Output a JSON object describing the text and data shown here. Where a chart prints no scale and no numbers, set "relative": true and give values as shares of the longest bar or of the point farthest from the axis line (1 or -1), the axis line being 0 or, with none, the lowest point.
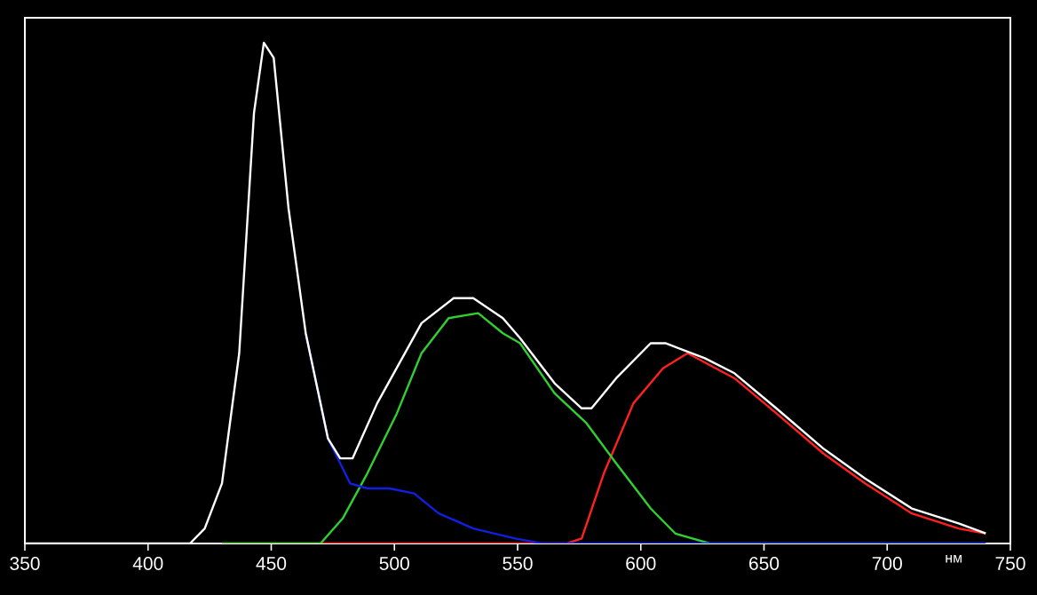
{
  "chart_data": {
    "type": "line",
    "relative": true,
    "xlabel": "нм",
    "xlim": [
      350,
      750
    ],
    "xticks": [
      350,
      400,
      450,
      500,
      550,
      600,
      650,
      700,
      750
    ],
    "grid": false,
    "marker": "none",
    "line_style": "solid",
    "series": [
      {
        "color": "#ff2020",
        "x": [
          430,
          570,
          576,
          585,
          597,
          609,
          619,
          638,
          655,
          674,
          691,
          710,
          729,
          740
        ],
        "values": [
          0,
          0,
          0.01,
          0.14,
          0.28,
          0.35,
          0.38,
          0.33,
          0.26,
          0.18,
          0.12,
          0.06,
          0.03,
          0.02
        ]
      },
      {
        "color": "#30d030",
        "x": [
          430,
          470,
          479,
          489,
          501,
          511,
          522,
          534,
          544,
          551,
          565,
          578,
          590,
          604,
          614,
          628,
          740
        ],
        "values": [
          0,
          0,
          0.05,
          0.14,
          0.26,
          0.38,
          0.45,
          0.46,
          0.42,
          0.4,
          0.3,
          0.24,
          0.16,
          0.07,
          0.02,
          0,
          0
        ]
      },
      {
        "color": "#1020e0",
        "x": [
          464,
          473,
          482,
          489,
          498,
          508,
          518,
          532,
          549,
          560,
          740
        ],
        "values": [
          0.42,
          0.21,
          0.12,
          0.11,
          0.11,
          0.1,
          0.06,
          0.03,
          0.01,
          0,
          0
        ]
      },
      {
        "color": "#ffffff",
        "x": [
          350,
          417,
          423,
          430,
          437,
          443,
          447,
          451,
          457,
          464,
          473,
          478,
          483,
          493,
          511,
          524,
          532,
          544,
          551,
          565,
          576,
          580,
          590,
          604,
          610,
          626,
          638,
          655,
          674,
          691,
          710,
          729,
          740
        ],
        "values": [
          0,
          0,
          0.03,
          0.12,
          0.38,
          0.86,
          1.0,
          0.97,
          0.67,
          0.42,
          0.21,
          0.17,
          0.17,
          0.28,
          0.44,
          0.49,
          0.49,
          0.45,
          0.41,
          0.32,
          0.27,
          0.27,
          0.33,
          0.4,
          0.4,
          0.37,
          0.34,
          0.27,
          0.19,
          0.13,
          0.07,
          0.04,
          0.02
        ]
      }
    ]
  }
}
